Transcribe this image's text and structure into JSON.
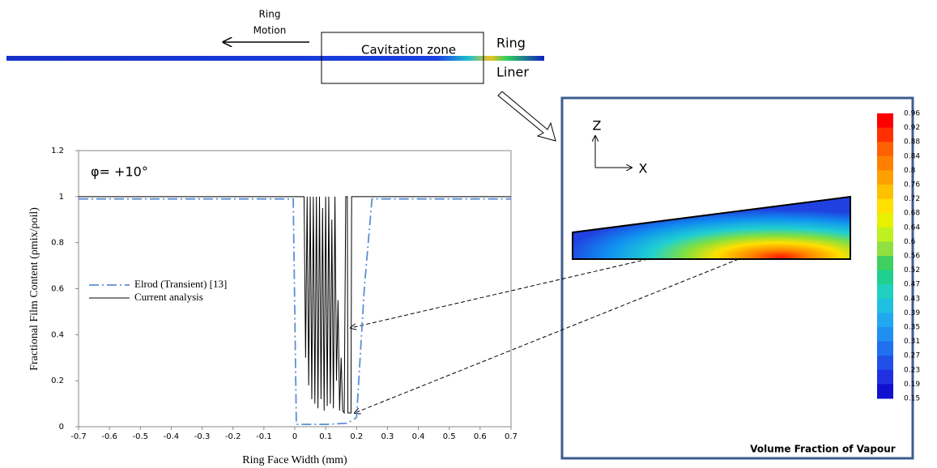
{
  "chart_data": {
    "type": "line",
    "annotation": "φ= +10°",
    "xlabel": "Ring Face Width (mm)",
    "ylabel": "Fractional Film Content (ρmix/ρoil)",
    "xlim": [
      -0.7,
      0.7
    ],
    "ylim": [
      0,
      1.2
    ],
    "xticks": [
      -0.7,
      -0.6,
      -0.5,
      -0.4,
      -0.3,
      -0.2,
      -0.1,
      0,
      0.1,
      0.2,
      0.3,
      0.4,
      0.5,
      0.6,
      0.7
    ],
    "yticks": [
      0,
      0.2,
      0.4,
      0.6,
      0.8,
      1,
      1.2
    ],
    "series": [
      {
        "name": "Elrod (Transient) [13]",
        "color": "#5b8fd6",
        "style": "dash-dot",
        "x": [
          -0.7,
          -0.005,
          0.005,
          0.1,
          0.17,
          0.2,
          0.225,
          0.25,
          0.7
        ],
        "values": [
          0.99,
          0.99,
          0.01,
          0.01,
          0.015,
          0.04,
          0.6,
          0.99,
          0.99
        ]
      },
      {
        "name": "Current analysis",
        "color": "#000000",
        "style": "solid",
        "x": [
          -0.7,
          0.03,
          0.035,
          0.04,
          0.045,
          0.05,
          0.055,
          0.06,
          0.065,
          0.07,
          0.075,
          0.08,
          0.085,
          0.09,
          0.095,
          0.1,
          0.105,
          0.11,
          0.115,
          0.12,
          0.125,
          0.13,
          0.135,
          0.14,
          0.145,
          0.15,
          0.155,
          0.16,
          0.165,
          0.17,
          0.172,
          0.182,
          0.184,
          0.7
        ],
        "values": [
          1,
          1,
          0.3,
          1,
          0.18,
          1,
          0.12,
          1,
          0.1,
          1,
          0.08,
          1,
          0.12,
          0.95,
          0.07,
          1,
          0.09,
          1,
          0.1,
          0.9,
          0.08,
          1,
          0.2,
          0.55,
          0.07,
          0.3,
          0.07,
          0.06,
          1,
          1,
          0.06,
          0.06,
          1,
          1
        ]
      }
    ]
  },
  "diagram": {
    "ring_motion": [
      "Ring",
      "Motion"
    ],
    "zone": "Cavitation zone",
    "ring": "Ring",
    "liner": "Liner",
    "axis_z": "Z",
    "axis_x": "X",
    "colorbar_title": "Volume Fraction of Vapour",
    "colorbar_ticks": [
      0.96,
      0.92,
      0.88,
      0.84,
      0.8,
      0.76,
      0.72,
      0.68,
      0.64,
      0.6,
      0.56,
      0.52,
      0.47,
      0.43,
      0.39,
      0.35,
      0.31,
      0.27,
      0.23,
      0.19,
      0.15
    ]
  }
}
